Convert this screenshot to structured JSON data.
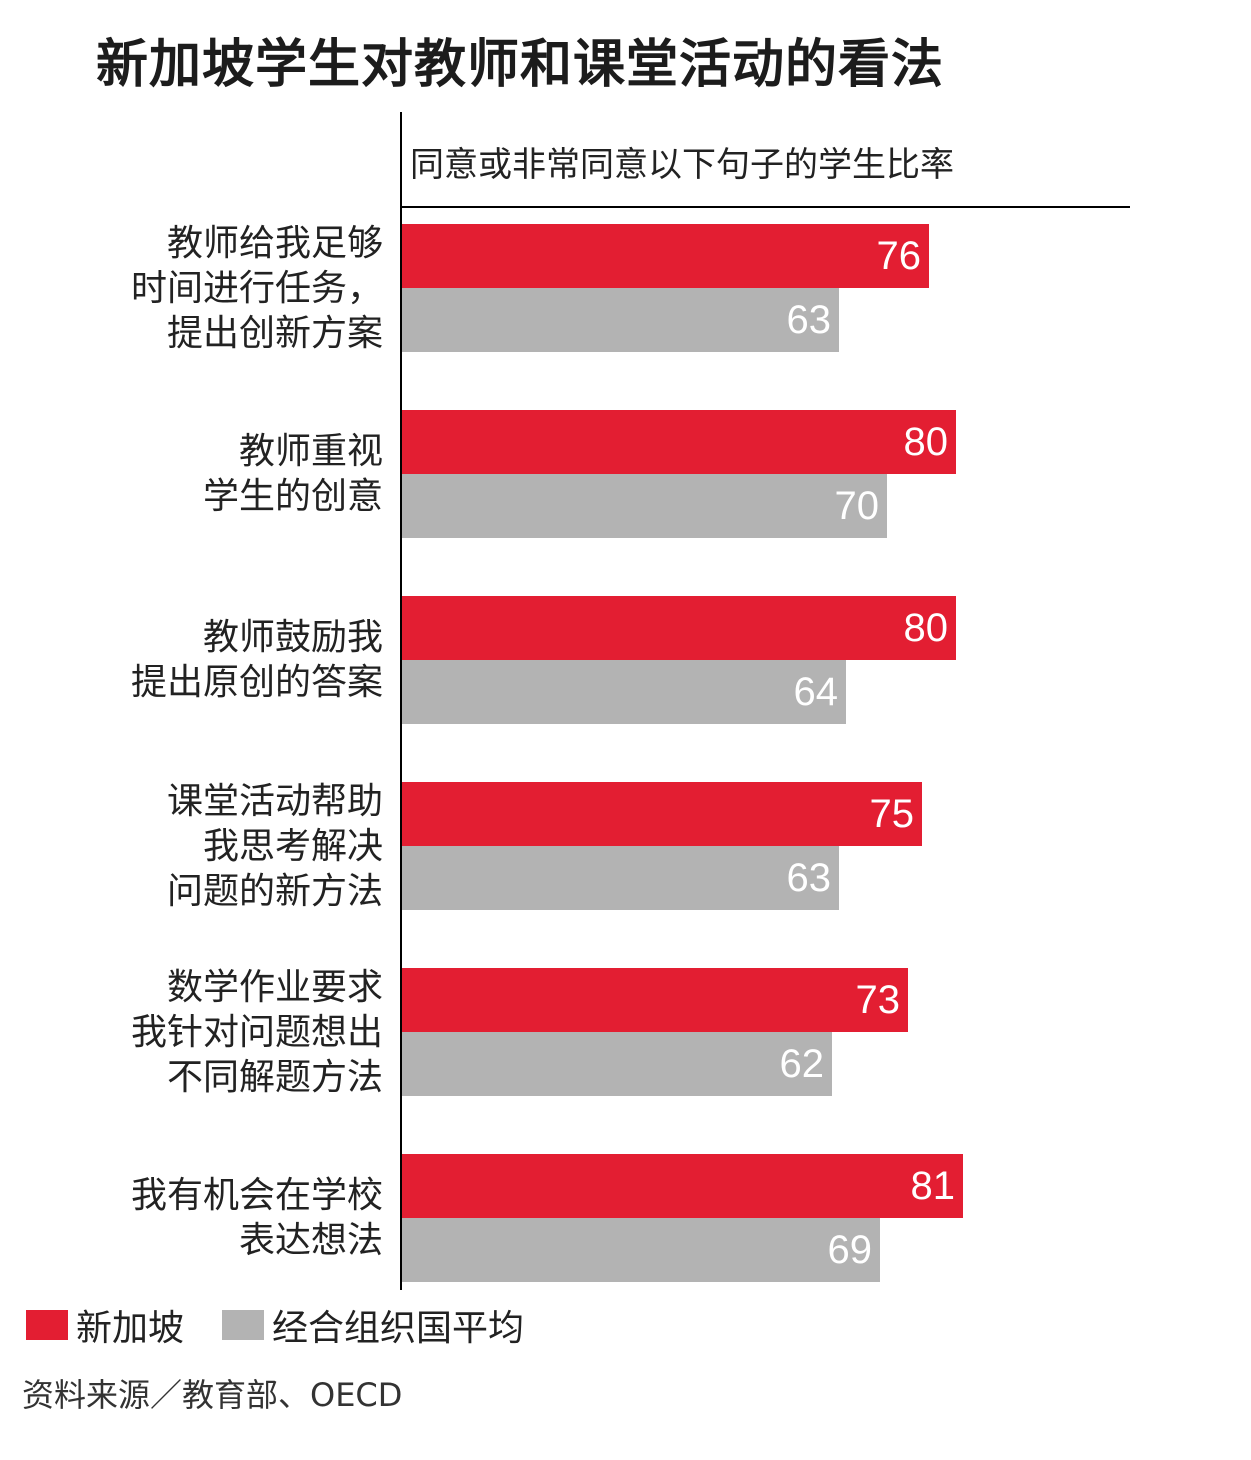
{
  "chart_data": {
    "type": "bar",
    "orientation": "horizontal",
    "title": "新加坡学生对教师和课堂活动的看法",
    "subtitle": "同意或非常同意以下句子的学生比率",
    "categories": [
      [
        "教师给我足够",
        "时间进行任务，",
        "提出创新方案"
      ],
      [
        "教师重视",
        "学生的创意"
      ],
      [
        "教师鼓励我",
        "提出原创的答案"
      ],
      [
        "课堂活动帮助",
        "我思考解决",
        "问题的新方法"
      ],
      [
        "数学作业要求",
        "我针对问题想出",
        "不同解题方法"
      ],
      [
        "我有机会在学校",
        "表达想法"
      ]
    ],
    "series": [
      {
        "name": "新加坡",
        "color": "#e31e32",
        "values": [
          76,
          80,
          80,
          75,
          73,
          81
        ]
      },
      {
        "name": "经合组织国平均",
        "color": "#b3b3b3",
        "values": [
          63,
          70,
          64,
          63,
          62,
          69
        ]
      }
    ],
    "xlim": [
      0,
      105
    ],
    "legend_position": "bottom-left",
    "grid": false
  },
  "source": "资料来源／教育部、OECD"
}
